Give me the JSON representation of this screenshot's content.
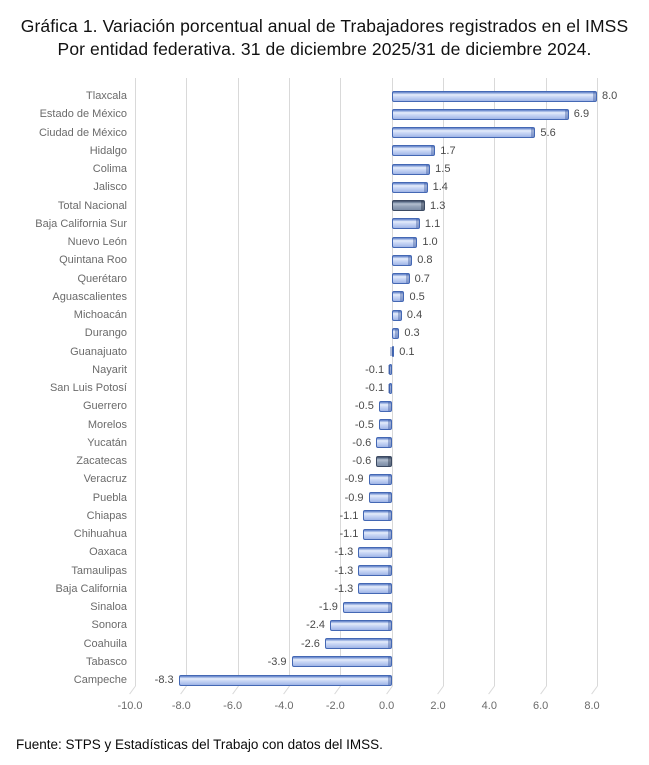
{
  "title": {
    "line1": "Gráfica 1. Variación porcentual anual de Trabajadores registrados en el IMSS",
    "line2": "Por entidad federativa. 31 de diciembre 2025/31 de diciembre 2024."
  },
  "footer": {
    "source": "Fuente: STPS y Estadísticas del Trabajo con datos del IMSS."
  },
  "chart_data": {
    "type": "bar",
    "orientation": "horizontal",
    "title": "Gráfica 1. Variación porcentual anual de Trabajadores registrados en el IMSS Por entidad federativa. 31 de diciembre 2025/31 de diciembre 2024.",
    "xlabel": "",
    "ylabel": "",
    "xlim": [
      -10.0,
      8.0
    ],
    "x_ticks": [
      -10,
      -8,
      -6,
      -4,
      -2,
      0,
      2,
      4,
      6,
      8
    ],
    "x_tick_labels": [
      "-10.0",
      "-8.0",
      "-6.0",
      "-4.0",
      "-2.0",
      "0.0",
      "2.0",
      "4.0",
      "6.0",
      "8.0"
    ],
    "grid": "vertical",
    "legend": "none",
    "value_label_decimals": 1,
    "categories": [
      "Tlaxcala",
      "Estado de México",
      "Ciudad de México",
      "Hidalgo",
      "Colima",
      "Jalisco",
      "Total Nacional",
      "Baja California Sur",
      "Nuevo León",
      "Quintana Roo",
      "Querétaro",
      "Aguascalientes",
      "Michoacán",
      "Durango",
      "Guanajuato",
      "Nayarit",
      "San Luis Potosí",
      "Guerrero",
      "Morelos",
      "Yucatán",
      "Zacatecas",
      "Veracruz",
      "Puebla",
      "Chiapas",
      "Chihuahua",
      "Oaxaca",
      "Tamaulipas",
      "Baja California",
      "Sinaloa",
      "Sonora",
      "Coahuila",
      "Tabasco",
      "Campeche"
    ],
    "values": [
      8.0,
      6.9,
      5.6,
      1.7,
      1.5,
      1.4,
      1.3,
      1.1,
      1.0,
      0.8,
      0.7,
      0.5,
      0.4,
      0.3,
      0.1,
      -0.1,
      -0.1,
      -0.5,
      -0.5,
      -0.6,
      -0.6,
      -0.9,
      -0.9,
      -1.1,
      -1.1,
      -1.3,
      -1.3,
      -1.3,
      -1.9,
      -2.4,
      -2.6,
      -3.9,
      -8.3
    ],
    "bar_styles": [
      "blue",
      "blue",
      "blue",
      "blue",
      "blue",
      "blue",
      "gray",
      "blue",
      "blue",
      "blue",
      "blue",
      "blue",
      "blue",
      "blue",
      "blue",
      "blue",
      "blue",
      "blue",
      "blue",
      "blue",
      "gray",
      "blue",
      "blue",
      "blue",
      "blue",
      "blue",
      "blue",
      "blue",
      "blue",
      "blue",
      "blue",
      "blue",
      "blue"
    ],
    "colors": {
      "bar_fill_blue": "#b6c8ee",
      "bar_border_blue": "#4468b4",
      "bar_fill_gray": "#8496ae",
      "bar_border_gray": "#3c4a62",
      "gridline": "#d9d9d9",
      "category_text": "#6b6b6b",
      "value_text": "#4a4a4a",
      "title_text": "#111111"
    }
  }
}
